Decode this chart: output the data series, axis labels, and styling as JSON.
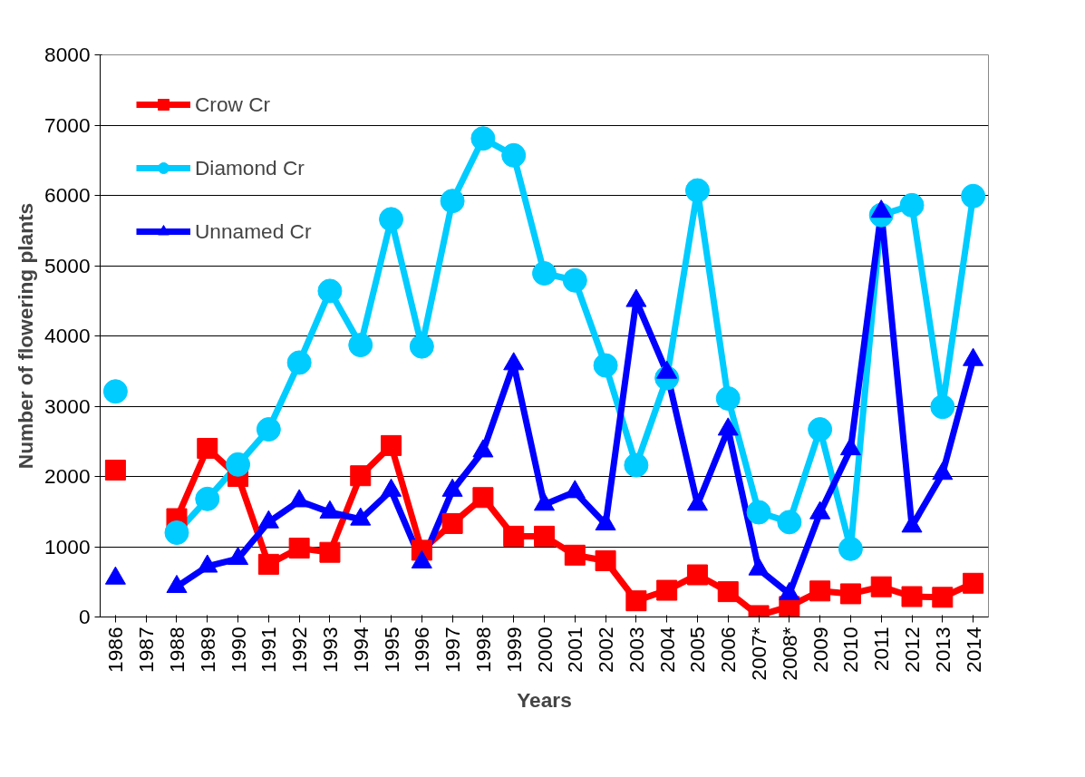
{
  "chart_data": {
    "type": "line",
    "xlabel": "Years",
    "ylabel": "Number of flowering plants",
    "categories": [
      "1986",
      "1987",
      "1988",
      "1989",
      "1990",
      "1991",
      "1992",
      "1993",
      "1994",
      "1995",
      "1996",
      "1997",
      "1998",
      "1999",
      "2000",
      "2001",
      "2002",
      "2003",
      "2004",
      "2005",
      "2006",
      "2007*",
      "2008*",
      "2009",
      "2010",
      "2011",
      "2012",
      "2013",
      "2014"
    ],
    "series": [
      {
        "name": "Crow Cr",
        "color": "#ff0000",
        "marker": "square",
        "values": [
          2090,
          null,
          1400,
          2400,
          2000,
          750,
          980,
          920,
          2010,
          2440,
          950,
          1330,
          1700,
          1150,
          1150,
          880,
          800,
          230,
          380,
          600,
          360,
          20,
          150,
          370,
          330,
          430,
          290,
          280,
          480
        ]
      },
      {
        "name": "Diamond Cr",
        "color": "#00ccff",
        "marker": "circle",
        "values": [
          3210,
          null,
          1200,
          1680,
          2170,
          2670,
          3620,
          4640,
          3870,
          5660,
          3850,
          5920,
          6810,
          6570,
          4890,
          4790,
          3580,
          2160,
          3400,
          6070,
          3110,
          1490,
          1350,
          2670,
          970,
          5720,
          5860,
          2990,
          5990
        ]
      },
      {
        "name": "Unnamed Cr",
        "color": "#0000ff",
        "marker": "triangle",
        "values": [
          550,
          null,
          430,
          720,
          830,
          1350,
          1650,
          1490,
          1390,
          1800,
          780,
          1800,
          2360,
          3600,
          1600,
          1780,
          1320,
          4500,
          3480,
          1600,
          2670,
          680,
          330,
          1480,
          2390,
          5770,
          1290,
          2040,
          3660
        ]
      }
    ],
    "ylim": [
      0,
      8000
    ],
    "yticks": [
      0,
      1000,
      2000,
      3000,
      4000,
      5000,
      6000,
      7000,
      8000
    ],
    "grid": "y",
    "legend": "top left",
    "line_style": "solid"
  }
}
